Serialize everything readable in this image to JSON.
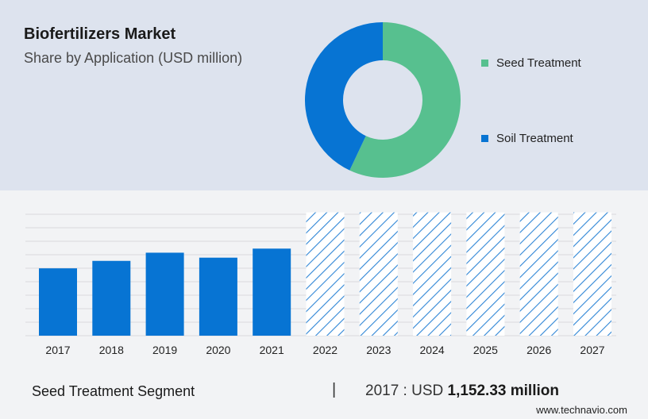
{
  "header": {
    "title": "Biofertilizers Market",
    "subtitle": "Share by Application (USD million)"
  },
  "colors": {
    "seed": "#57c08f",
    "soil": "#0774d3",
    "forecast": "#2f86d6"
  },
  "chart_data": [
    {
      "type": "pie",
      "variant": "donut",
      "slices": [
        {
          "name": "Seed Treatment",
          "value": 57
        },
        {
          "name": "Soil Treatment",
          "value": 43
        }
      ],
      "legend": "right"
    },
    {
      "type": "bar",
      "categories": [
        "2017",
        "2018",
        "2019",
        "2020",
        "2021",
        "2022",
        "2023",
        "2024",
        "2025",
        "2026",
        "2027"
      ],
      "values": [
        1152.33,
        1280,
        1420,
        1335,
        1490,
        2110,
        2110,
        2110,
        2110,
        2110,
        2110
      ],
      "forecast_from": "2022",
      "ylim": [
        0,
        2200
      ],
      "grid": true
    }
  ],
  "footer": {
    "segment_label": "Seed Treatment Segment",
    "separator": "|",
    "year_prefix": "2017 : USD",
    "value": "1,152.33 million",
    "source": "www.technavio.com"
  }
}
